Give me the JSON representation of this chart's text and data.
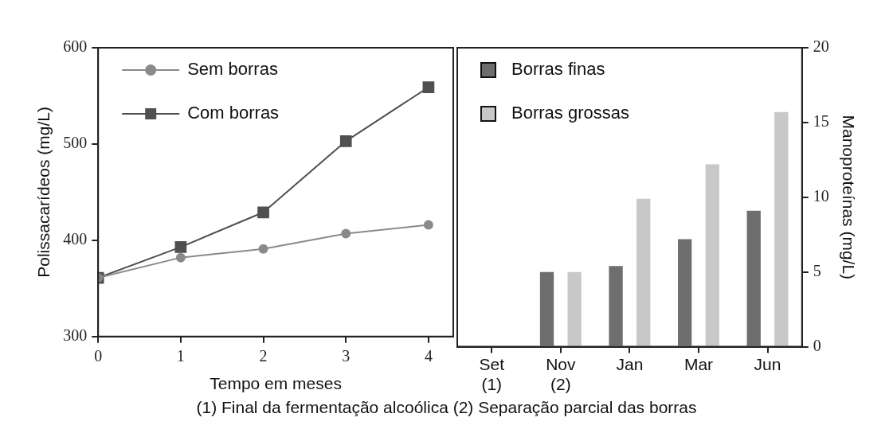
{
  "chart_data": [
    {
      "type": "line",
      "xlabel": "Tempo em meses",
      "ylabel": "Polissacarídeos (mg/L)",
      "x": [
        0,
        1,
        2,
        3,
        4
      ],
      "xlim": [
        0,
        4.3
      ],
      "xticks": [
        0,
        1,
        2,
        3,
        4
      ],
      "ylim": [
        300,
        600
      ],
      "yticks": [
        300,
        400,
        500,
        600
      ],
      "grid": false,
      "legend": "top left",
      "line_style": "solid",
      "series": [
        {
          "name": "Sem borras",
          "color": "#8a8a8a",
          "marker": "circle",
          "values": [
            361,
            382,
            391,
            407,
            416
          ]
        },
        {
          "name": "Com borras",
          "color": "#505050",
          "marker": "square",
          "values": [
            361,
            393,
            429,
            503,
            559
          ]
        }
      ]
    },
    {
      "type": "bar",
      "categories": [
        "Set (1)",
        "Nov (2)",
        "Jan",
        "Mar",
        "Jun"
      ],
      "y2label": "Manoproteínas (mg/L)",
      "y2lim": [
        0,
        20
      ],
      "y2ticks": [
        0,
        5,
        10,
        15,
        20
      ],
      "grid": false,
      "legend": "top left",
      "annotations": [
        "(1)  Final da fermentação alcoólica (2) Separação parcial das borras"
      ],
      "series": [
        {
          "name": "Borras finas",
          "color": "#6e6e6e",
          "axis": "y2",
          "values": [
            null,
            5,
            5.4,
            7.2,
            9.1
          ]
        },
        {
          "name": "Borras grossas",
          "color": "#c8c8c8",
          "axis": "y2",
          "values": [
            null,
            5,
            9.9,
            12.2,
            15.7
          ]
        }
      ]
    }
  ]
}
